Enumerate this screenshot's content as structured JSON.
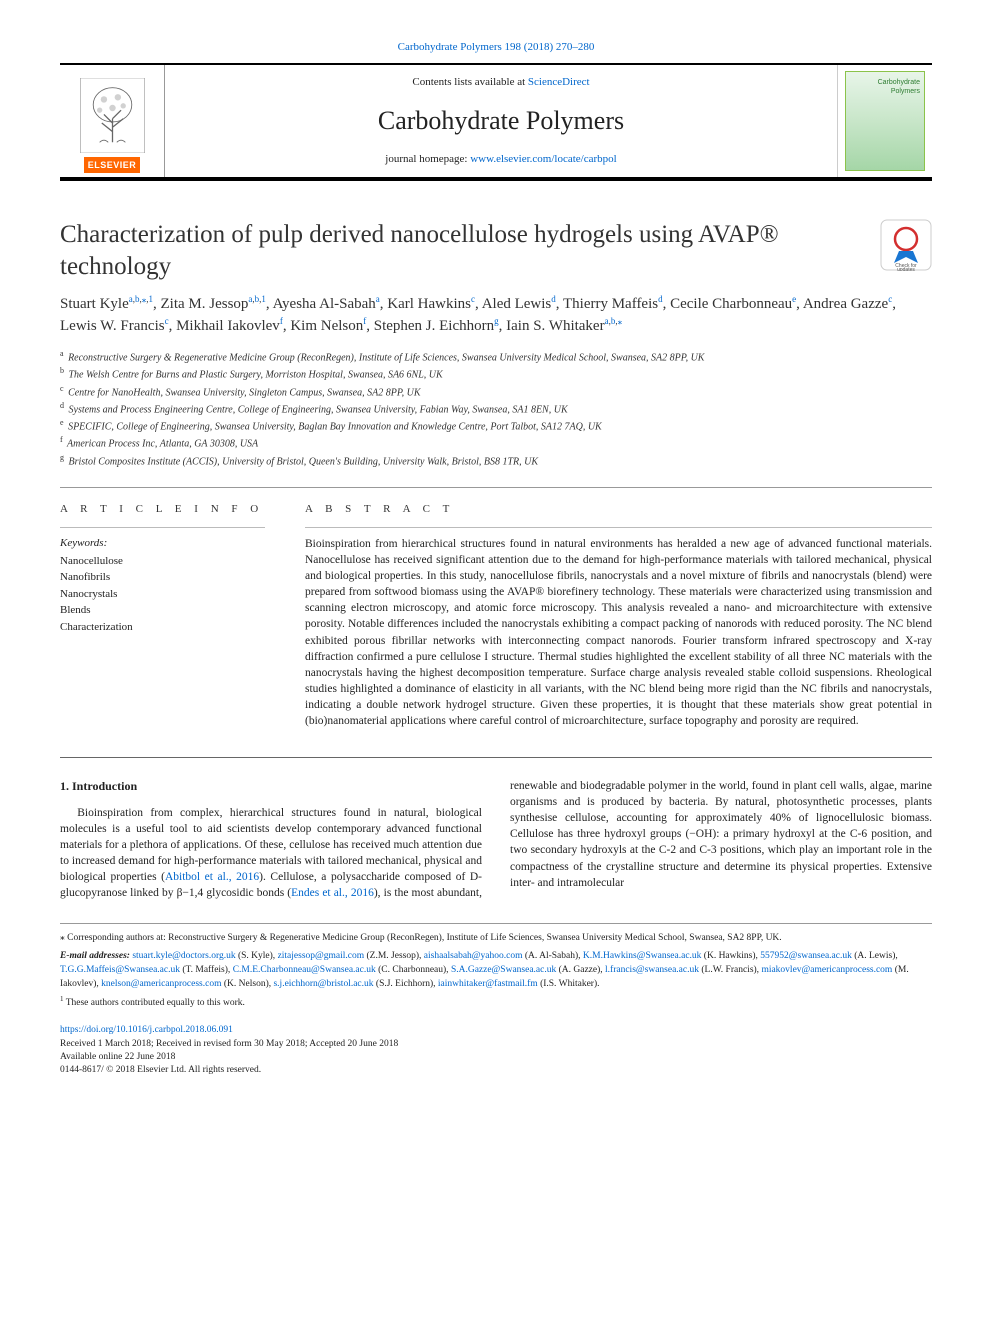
{
  "citation": {
    "journal_link_text": "Carbohydrate Polymers 198 (2018) 270–280",
    "journal_link_color": "#0066cc"
  },
  "header": {
    "contents_prefix": "Contents lists available at ",
    "contents_link": "ScienceDirect",
    "journal_name": "Carbohydrate Polymers",
    "homepage_prefix": "journal homepage: ",
    "homepage_link": "www.elsevier.com/locate/carbpol",
    "publisher_badge": "ELSEVIER",
    "cover_title": "Carbohydrate Polymers"
  },
  "title": "Characterization of pulp derived nanocellulose hydrogels using AVAP® technology",
  "check_updates_label": "Check for updates",
  "authors_html": "Stuart Kyle<sup><a>a</a>,<a>b</a>,<a>⁎</a>,<a>1</a></sup>, Zita M. Jessop<sup><a>a</a>,<a>b</a>,<a>1</a></sup>, Ayesha Al-Sabah<sup><a>a</a></sup>, Karl Hawkins<sup><a>c</a></sup>, Aled Lewis<sup><a>d</a></sup>, Thierry Maffeis<sup><a>d</a></sup>, Cecile Charbonneau<sup><a>e</a></sup>, Andrea Gazze<sup><a>c</a></sup>, Lewis W. Francis<sup><a>c</a></sup>, Mikhail Iakovlev<sup><a>f</a></sup>, Kim Nelson<sup><a>f</a></sup>, Stephen J. Eichhorn<sup><a>g</a></sup>, Iain S. Whitaker<sup><a>a</a>,<a>b</a>,<a>⁎</a></sup>",
  "affiliations": [
    {
      "key": "a",
      "text": "Reconstructive Surgery & Regenerative Medicine Group (ReconRegen), Institute of Life Sciences, Swansea University Medical School, Swansea, SA2 8PP, UK"
    },
    {
      "key": "b",
      "text": "The Welsh Centre for Burns and Plastic Surgery, Morriston Hospital, Swansea, SA6 6NL, UK"
    },
    {
      "key": "c",
      "text": "Centre for NanoHealth, Swansea University, Singleton Campus, Swansea, SA2 8PP, UK"
    },
    {
      "key": "d",
      "text": "Systems and Process Engineering Centre, College of Engineering, Swansea University, Fabian Way, Swansea, SA1 8EN, UK"
    },
    {
      "key": "e",
      "text": "SPECIFIC, College of Engineering, Swansea University, Baglan Bay Innovation and Knowledge Centre, Port Talbot, SA12 7AQ, UK"
    },
    {
      "key": "f",
      "text": "American Process Inc, Atlanta, GA 30308, USA"
    },
    {
      "key": "g",
      "text": "Bristol Composites Institute (ACCIS), University of Bristol, Queen's Building, University Walk, Bristol, BS8 1TR, UK"
    }
  ],
  "article_info_label": "A R T I C L E  I N F O",
  "abstract_label": "A B S T R A C T",
  "keywords_label": "Keywords:",
  "keywords": [
    "Nanocellulose",
    "Nanofibrils",
    "Nanocrystals",
    "Blends",
    "Characterization"
  ],
  "abstract_text": "Bioinspiration from hierarchical structures found in natural environments has heralded a new age of advanced functional materials. Nanocellulose has received significant attention due to the demand for high-performance materials with tailored mechanical, physical and biological properties. In this study, nanocellulose fibrils, nanocrystals and a novel mixture of fibrils and nanocrystals (blend) were prepared from softwood biomass using the AVAP® biorefinery technology. These materials were characterized using transmission and scanning electron microscopy, and atomic force microscopy. This analysis revealed a nano- and microarchitecture with extensive porosity. Notable differences included the nanocrystals exhibiting a compact packing of nanorods with reduced porosity. The NC blend exhibited porous fibrillar networks with interconnecting compact nanorods. Fourier transform infrared spectroscopy and X-ray diffraction confirmed a pure cellulose I structure. Thermal studies highlighted the excellent stability of all three NC materials with the nanocrystals having the highest decomposition temperature. Surface charge analysis revealed stable colloid suspensions. Rheological studies highlighted a dominance of elasticity in all variants, with the NC blend being more rigid than the NC fibrils and nanocrystals, indicating a double network hydrogel structure. Given these properties, it is thought that these materials show great potential in (bio)nanomaterial applications where careful control of microarchitecture, surface topography and porosity are required.",
  "intro": {
    "heading": "1. Introduction",
    "col1": "Bioinspiration from complex, hierarchical structures found in natural, biological molecules is a useful tool to aid scientists develop contemporary advanced functional materials for a plethora of applications. Of these, cellulose has received much attention due to increased demand for high-performance materials with tailored mechanical, physical and biological properties (",
    "ref1": "Abitbol et al., 2016",
    "col1b": "). Cellulose, a polysaccharide composed of D-glucopyranose linked by β−1,4",
    "col2a": "glycosidic bonds (",
    "ref2": "Endes et al., 2016",
    "col2b": "), is the most abundant, renewable and biodegradable polymer in the world, found in plant cell walls, algae, marine organisms and is produced by bacteria. By natural, photosynthetic processes, plants synthesise cellulose, accounting for approximately 40% of lignocellulosic biomass. Cellulose has three hydroxyl groups (−OH): a primary hydroxyl at the C-6 position, and two secondary hydroxyls at the C-2 and C-3 positions, which play an important role in the compactness of the crystalline structure and determine its physical properties. Extensive inter- and intramolecular"
  },
  "footnotes": {
    "corresponding": "⁎ Corresponding authors at: Reconstructive Surgery & Regenerative Medicine Group (ReconRegen), Institute of Life Sciences, Swansea University Medical School, Swansea, SA2 8PP, UK.",
    "email_label": "E-mail addresses: ",
    "emails": [
      {
        "email": "stuart.kyle@doctors.org.uk",
        "name": "(S. Kyle)"
      },
      {
        "email": "zitajessop@gmail.com",
        "name": "(Z.M. Jessop)"
      },
      {
        "email": "aishaalsabah@yahoo.com",
        "name": "(A. Al-Sabah)"
      },
      {
        "email": "K.M.Hawkins@Swansea.ac.uk",
        "name": "(K. Hawkins)"
      },
      {
        "email": "557952@swansea.ac.uk",
        "name": "(A. Lewis)"
      },
      {
        "email": "T.G.G.Maffeis@Swansea.ac.uk",
        "name": "(T. Maffeis)"
      },
      {
        "email": "C.M.E.Charbonneau@Swansea.ac.uk",
        "name": "(C. Charbonneau)"
      },
      {
        "email": "S.A.Gazze@Swansea.ac.uk",
        "name": "(A. Gazze)"
      },
      {
        "email": "l.francis@swansea.ac.uk",
        "name": "(L.W. Francis)"
      },
      {
        "email": "miakovlev@americanprocess.com",
        "name": "(M. Iakovlev)"
      },
      {
        "email": "knelson@americanprocess.com",
        "name": "(K. Nelson)"
      },
      {
        "email": "s.j.eichhorn@bristol.ac.uk",
        "name": "(S.J. Eichhorn)"
      },
      {
        "email": "iainwhitaker@fastmail.fm",
        "name": "(I.S. Whitaker)"
      }
    ],
    "equal": "1 These authors contributed equally to this work."
  },
  "doi": {
    "link": "https://doi.org/10.1016/j.carbpol.2018.06.091",
    "received": "Received 1 March 2018; Received in revised form 30 May 2018; Accepted 20 June 2018",
    "available": "Available online 22 June 2018",
    "copyright": "0144-8617/ © 2018 Elsevier Ltd. All rights reserved."
  },
  "colors": {
    "link": "#0066cc",
    "elsevier_orange": "#ff6600",
    "border_dark": "#000000",
    "border_light": "#999999",
    "cover_green": "#8bc34a"
  }
}
